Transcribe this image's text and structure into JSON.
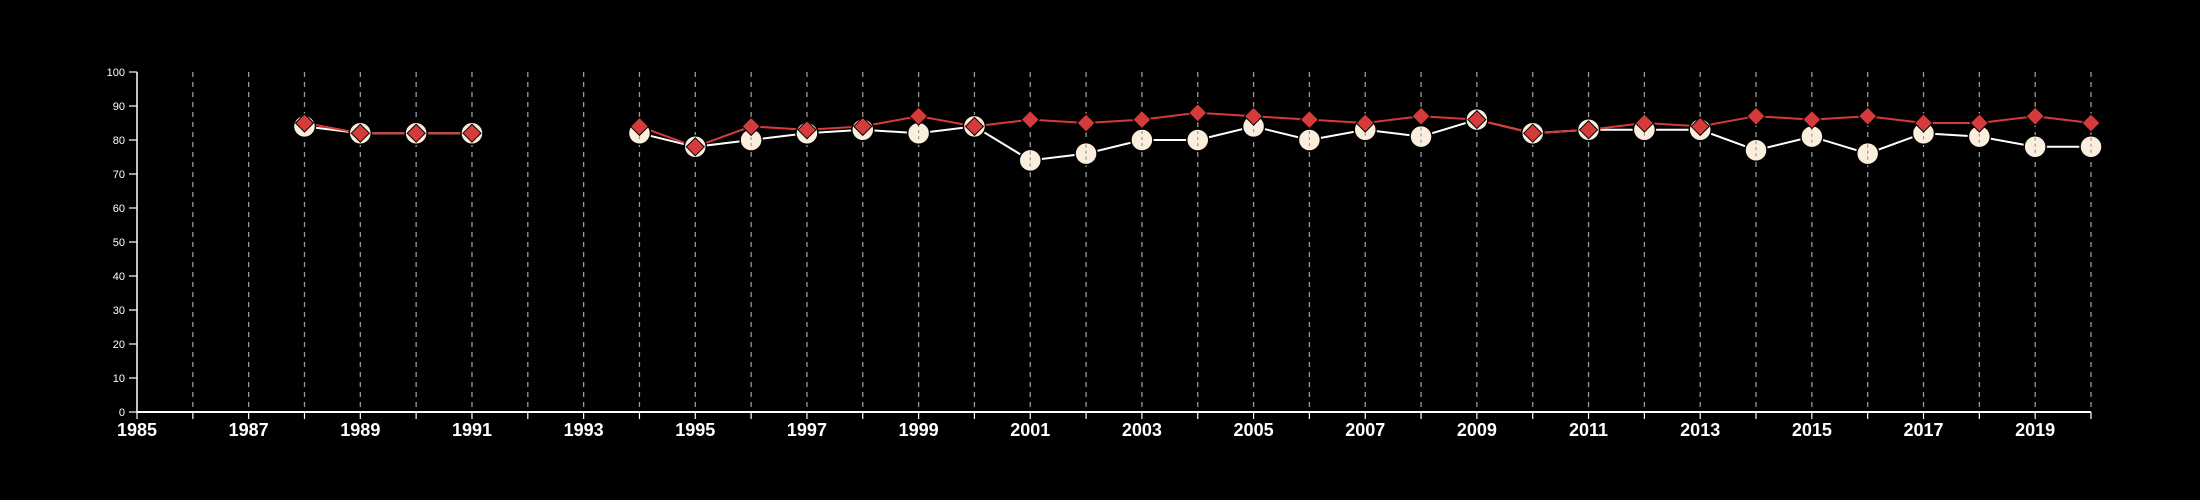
{
  "colors": {
    "background": "#000000",
    "axis": "#ffffff",
    "grid": "#9a9a9a",
    "series_a_line": "#ffffff",
    "series_a_marker": "#fbeedd",
    "series_b": "#d63b3b"
  },
  "chart_data": {
    "type": "line",
    "title": "",
    "xlabel": "",
    "ylabel": "",
    "xlim": [
      1985,
      2020
    ],
    "ylim": [
      0,
      100
    ],
    "x_ticks": [
      1985,
      1987,
      1989,
      1991,
      1993,
      1995,
      1997,
      1999,
      2001,
      2003,
      2005,
      2007,
      2009,
      2011,
      2013,
      2015,
      2017,
      2019
    ],
    "y_ticks": [
      0,
      10,
      20,
      30,
      40,
      50,
      60,
      70,
      80,
      90,
      100
    ],
    "grid": "vertical dashed lines at every year",
    "legend": "none",
    "x": [
      1985,
      1986,
      1987,
      1988,
      1989,
      1990,
      1991,
      1992,
      1993,
      1994,
      1995,
      1996,
      1997,
      1998,
      1999,
      2000,
      2001,
      2002,
      2003,
      2004,
      2005,
      2006,
      2007,
      2008,
      2009,
      2010,
      2011,
      2012,
      2013,
      2014,
      2015,
      2016,
      2017,
      2018,
      2019,
      2020
    ],
    "series": [
      {
        "marker": "circle",
        "values": [
          null,
          null,
          null,
          84,
          82,
          82,
          82,
          null,
          null,
          82,
          78,
          80,
          82,
          83,
          82,
          84,
          74,
          76,
          80,
          80,
          84,
          80,
          83,
          81,
          86,
          82,
          83,
          83,
          83,
          77,
          81,
          76,
          82,
          81,
          78,
          78
        ]
      },
      {
        "marker": "diamond",
        "values": [
          null,
          null,
          null,
          85,
          82,
          82,
          82,
          null,
          null,
          84,
          78,
          84,
          83,
          84,
          87,
          84,
          86,
          85,
          86,
          88,
          87,
          86,
          85,
          87,
          86,
          82,
          83,
          85,
          84,
          87,
          86,
          87,
          85,
          85,
          87,
          85
        ]
      }
    ]
  }
}
